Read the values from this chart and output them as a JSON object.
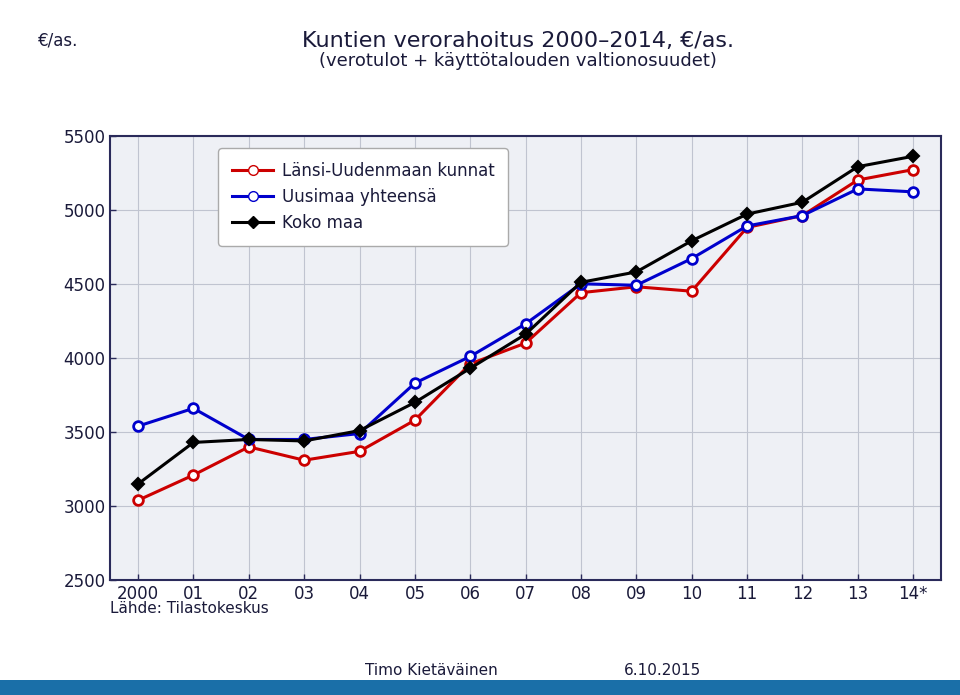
{
  "title_line1": "Kuntien verorahoitus 2000–2014, €/as.",
  "title_line2": "(verotulot + käyttötalouden valtionosuudet)",
  "ylabel": "€/as.",
  "xlabel_note": "Lähde: Tilastokeskus",
  "footer_left": "Timo Kietäväinen",
  "footer_right": "6.10.2015",
  "xtick_labels": [
    "2000",
    "01",
    "02",
    "03",
    "04",
    "05",
    "06",
    "07",
    "08",
    "09",
    "10",
    "11",
    "12",
    "13",
    "14*"
  ],
  "lansi": [
    3040,
    3210,
    3400,
    3310,
    3370,
    3580,
    3960,
    4100,
    4440,
    4480,
    4450,
    4880,
    4960,
    5200,
    5270
  ],
  "uusimaa": [
    3540,
    3660,
    3450,
    3450,
    3490,
    3830,
    4010,
    4230,
    4500,
    4490,
    4670,
    4890,
    4960,
    5140,
    5120
  ],
  "koko_maa": [
    3150,
    3430,
    3450,
    3440,
    3510,
    3700,
    3930,
    4160,
    4510,
    4580,
    4790,
    4970,
    5050,
    5290,
    5360
  ],
  "lansi_color": "#cc0000",
  "uusimaa_color": "#0000cc",
  "koko_color": "#000000",
  "ylim": [
    2500,
    5500
  ],
  "yticks": [
    2500,
    3000,
    3500,
    4000,
    4500,
    5000,
    5500
  ],
  "bg_color": "#ffffff",
  "plot_bg_color": "#eef0f5",
  "grid_color": "#c0c4d0",
  "title_color": "#1a1a3a",
  "axis_color": "#1a1a3a",
  "legend_label1": "Länsi-Uudenmaan kunnat",
  "legend_label2": "Uusimaa yhteensä",
  "legend_label3": "Koko maa",
  "bottom_bar_color": "#1a6fa8",
  "source_color": "#1a1a3a",
  "footer_color": "#1a1a3a"
}
